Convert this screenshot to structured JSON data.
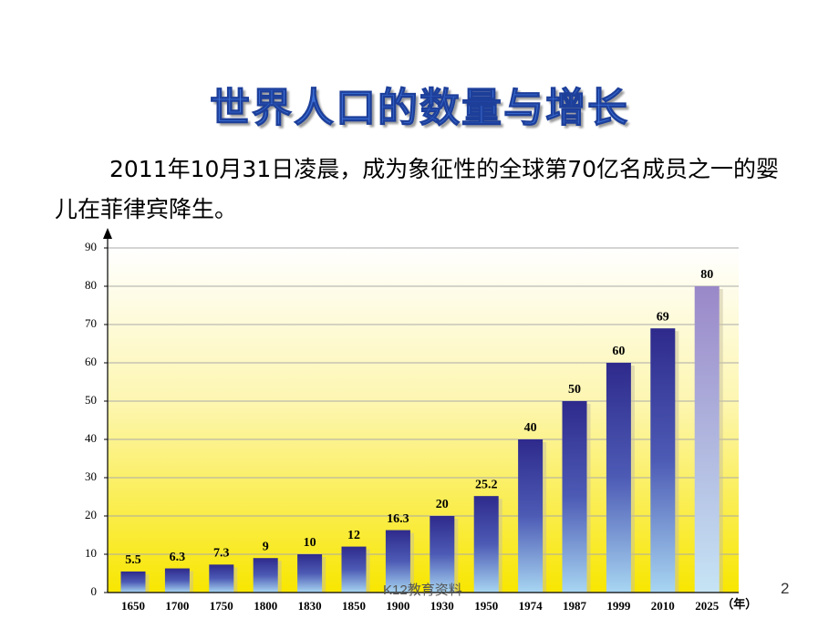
{
  "title": "世界人口的数量与增长",
  "paragraph": "2011年10月31日凌晨，成为象征性的全球第70亿名成员之一的婴儿在菲律宾降生。",
  "chart_data": {
    "type": "bar",
    "categories": [
      "1650",
      "1700",
      "1750",
      "1800",
      "1830",
      "1850",
      "1900",
      "1930",
      "1950",
      "1974",
      "1987",
      "1999",
      "2010",
      "2025"
    ],
    "values": [
      5.5,
      6.3,
      7.3,
      9,
      10,
      12,
      16.3,
      20,
      25.2,
      40,
      50,
      60,
      69,
      80
    ],
    "x_label": "（年）",
    "ylim": [
      0,
      90
    ],
    "yticks": [
      0,
      10,
      20,
      30,
      40,
      50,
      60,
      70,
      80,
      90
    ],
    "grid": true,
    "color": "#2e2a8c"
  },
  "footer": "K12教育资料",
  "page_number": "2"
}
